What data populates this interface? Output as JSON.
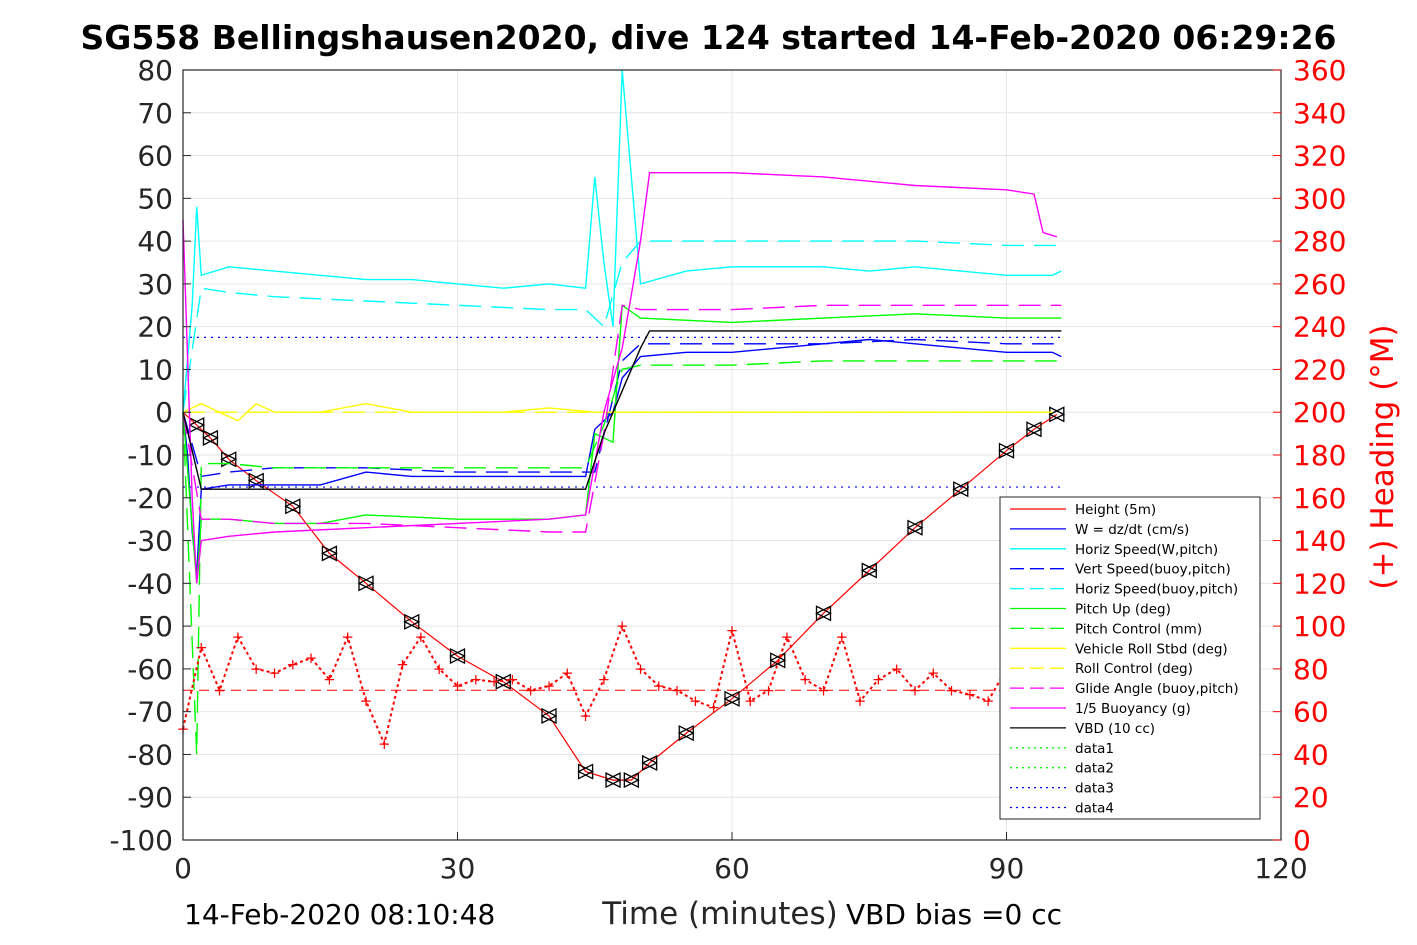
{
  "chart_data": {
    "type": "line",
    "title": "SG558 Bellingshausen2020, dive 124 started 14-Feb-2020 06:29:26",
    "xlabel": "Time (minutes)",
    "ylabel": "",
    "ylabel_right": "(+) Heading (°M)",
    "footer_left": "14-Feb-2020 08:10:48",
    "footer_right": "VBD bias =0 cc",
    "xlim": [
      0,
      120
    ],
    "ylim": [
      -100,
      80
    ],
    "ylim_right": [
      0,
      360
    ],
    "xticks": [
      0,
      30,
      60,
      90,
      120
    ],
    "yticks": [
      -100,
      -90,
      -80,
      -70,
      -60,
      -50,
      -40,
      -30,
      -20,
      -10,
      0,
      10,
      20,
      30,
      40,
      50,
      60,
      70,
      80
    ],
    "yticks_right": [
      0,
      20,
      40,
      60,
      80,
      100,
      120,
      140,
      160,
      180,
      200,
      220,
      240,
      260,
      280,
      300,
      320,
      340,
      360
    ],
    "grid": true,
    "legend_position": "bottom-right",
    "colors": {
      "height": "#ff0000",
      "w": "#0000ff",
      "horiz_w": "#00ffff",
      "pitch": "#00ff00",
      "roll": "#ffff00",
      "glide": "#ff00ff",
      "vbd": "#000000",
      "axis_right": "#ff0000"
    },
    "legend": [
      {
        "label": "Height (5m)",
        "color": "#ff0000",
        "style": "solid"
      },
      {
        "label": "W = dz/dt (cm/s)",
        "color": "#0000ff",
        "style": "solid"
      },
      {
        "label": "Horiz Speed(W,pitch)",
        "color": "#00ffff",
        "style": "solid"
      },
      {
        "label": "Vert Speed(buoy,pitch)",
        "color": "#0000ff",
        "style": "dashed"
      },
      {
        "label": "Horiz Speed(buoy,pitch)",
        "color": "#00ffff",
        "style": "dashed"
      },
      {
        "label": "Pitch Up (deg)",
        "color": "#00ff00",
        "style": "solid"
      },
      {
        "label": "Pitch Control (mm)",
        "color": "#00ff00",
        "style": "dashed"
      },
      {
        "label": "Vehicle Roll Stbd (deg)",
        "color": "#ffff00",
        "style": "solid"
      },
      {
        "label": "Roll Control (deg)",
        "color": "#ffff00",
        "style": "dashed"
      },
      {
        "label": "Glide Angle (buoy,pitch)",
        "color": "#ff00ff",
        "style": "dashed"
      },
      {
        "label": "1/5 Buoyancy (g)",
        "color": "#ff00ff",
        "style": "solid"
      },
      {
        "label": "VBD (10 cc)",
        "color": "#000000",
        "style": "solid"
      },
      {
        "label": "data1",
        "color": "#00ff00",
        "style": "dotted"
      },
      {
        "label": "data2",
        "color": "#00ff00",
        "style": "dotted"
      },
      {
        "label": "data3",
        "color": "#0000ff",
        "style": "dotted"
      },
      {
        "label": "data4",
        "color": "#0000ff",
        "style": "dotted"
      }
    ],
    "series": [
      {
        "name": "Height (5m)",
        "x": [
          0,
          1.5,
          3,
          5,
          8,
          12,
          16,
          20,
          25,
          30,
          35,
          40,
          44,
          47,
          49,
          51,
          55,
          60,
          65,
          70,
          75,
          80,
          85,
          90,
          93,
          95.5
        ],
        "y": [
          0,
          -3,
          -6,
          -11,
          -16,
          -22,
          -33,
          -40,
          -49,
          -57,
          -63,
          -71,
          -84,
          -86,
          -86,
          -82,
          -75,
          -67,
          -58,
          -47,
          -37,
          -27,
          -18,
          -9,
          -4,
          -0.5
        ]
      },
      {
        "name": "W = dz/dt (cm/s)",
        "x": [
          0,
          0.5,
          1,
          1.5,
          2,
          5,
          10,
          15,
          20,
          25,
          30,
          35,
          40,
          44,
          45,
          46,
          47,
          48,
          50,
          55,
          60,
          65,
          70,
          75,
          80,
          85,
          90,
          95,
          96
        ],
        "y": [
          0,
          -10,
          -28,
          -38,
          -18,
          -17,
          -17,
          -17,
          -14,
          -15,
          -15,
          -15,
          -15,
          -15,
          -4,
          -2,
          0,
          8,
          13,
          14,
          14,
          15,
          16,
          17,
          16,
          15,
          14,
          14,
          13
        ]
      },
      {
        "name": "Horiz Speed(W,pitch)",
        "x": [
          0,
          1,
          1.5,
          2,
          5,
          10,
          15,
          20,
          25,
          30,
          35,
          40,
          44,
          45,
          46,
          47,
          48,
          50,
          55,
          60,
          65,
          70,
          75,
          80,
          85,
          90,
          95,
          96
        ],
        "y": [
          0,
          25,
          48,
          32,
          34,
          33,
          32,
          31,
          31,
          30,
          29,
          30,
          29,
          55,
          35,
          20,
          80,
          30,
          33,
          34,
          34,
          34,
          33,
          34,
          33,
          32,
          32,
          33
        ]
      },
      {
        "name": "Vert Speed(buoy,pitch)",
        "x": [
          0,
          2,
          5,
          10,
          20,
          30,
          40,
          45,
          48,
          50,
          60,
          70,
          80,
          90,
          96
        ],
        "y": [
          0,
          -15,
          -14,
          -13,
          -13,
          -14,
          -14,
          -14,
          12,
          16,
          16,
          16,
          17,
          16,
          16
        ]
      },
      {
        "name": "Horiz Speed(buoy,pitch)",
        "x": [
          0,
          2,
          5,
          10,
          20,
          30,
          40,
          44,
          46,
          48,
          50,
          60,
          70,
          80,
          90,
          96
        ],
        "y": [
          0,
          29,
          28,
          27,
          26,
          25,
          24,
          24,
          20,
          35,
          40,
          40,
          40,
          40,
          39,
          39
        ]
      },
      {
        "name": "Pitch Up (deg)",
        "x": [
          0,
          1.5,
          2,
          5,
          10,
          15,
          20,
          30,
          40,
          44,
          45,
          47,
          48,
          50,
          60,
          70,
          80,
          90,
          96
        ],
        "y": [
          0,
          -40,
          -25,
          -25,
          -26,
          -26,
          -24,
          -25,
          -25,
          -24,
          -5,
          -7,
          25,
          22,
          21,
          22,
          23,
          22,
          22
        ]
      },
      {
        "name": "Pitch Control (mm)",
        "x": [
          0,
          1.5,
          2,
          5,
          10,
          20,
          30,
          40,
          44,
          46,
          48,
          50,
          60,
          70,
          80,
          90,
          96
        ],
        "y": [
          0,
          -80,
          -12,
          -12,
          -13,
          -13,
          -13,
          -13,
          -13,
          -3,
          10,
          11,
          11,
          12,
          12,
          12,
          12
        ]
      },
      {
        "name": "Vehicle Roll Stbd (deg)",
        "x": [
          0,
          2,
          4,
          6,
          8,
          10,
          15,
          20,
          25,
          30,
          35,
          40,
          45,
          50,
          55,
          60,
          65,
          70,
          75,
          80,
          85,
          90,
          95
        ],
        "y": [
          0,
          2,
          0,
          -2,
          2,
          0,
          0,
          2,
          0,
          0,
          0,
          1,
          0,
          0,
          0,
          0,
          0,
          0,
          0,
          0,
          0,
          0,
          0
        ]
      },
      {
        "name": "Roll Control (deg)",
        "x": [
          0,
          2,
          5,
          10,
          20,
          30,
          40,
          45,
          50,
          60,
          70,
          80,
          90,
          95
        ],
        "y": [
          0,
          0,
          0,
          0,
          0,
          0,
          0,
          0,
          0,
          0,
          0,
          0,
          0,
          0
        ]
      },
      {
        "name": "Glide Angle (buoy,pitch)",
        "x": [
          0,
          2,
          5,
          10,
          20,
          30,
          40,
          44,
          46,
          48,
          50,
          60,
          70,
          80,
          90,
          96
        ],
        "y": [
          0,
          -25,
          -25,
          -26,
          -26,
          -27,
          -28,
          -28,
          -5,
          25,
          24,
          24,
          25,
          25,
          25,
          25
        ]
      },
      {
        "name": "1/5 Buoyancy (g)",
        "x": [
          0,
          1,
          1.5,
          2,
          5,
          10,
          20,
          30,
          40,
          44,
          46,
          48,
          50,
          51,
          60,
          70,
          80,
          90,
          93,
          94,
          95.5
        ],
        "y": [
          45,
          -20,
          -40,
          -30,
          -29,
          -28,
          -27,
          -26,
          -25,
          -24,
          0,
          15,
          40,
          56,
          56,
          55,
          53,
          52,
          51,
          42,
          41
        ]
      },
      {
        "name": "VBD (10 cc)",
        "x": [
          0,
          2,
          5,
          10,
          20,
          30,
          40,
          44,
          46,
          48,
          50,
          51,
          60,
          70,
          80,
          90,
          96
        ],
        "y": [
          0,
          -18,
          -18,
          -18,
          -18,
          -18,
          -18,
          -18,
          -5,
          5,
          15,
          19,
          19,
          19,
          19,
          19,
          19
        ]
      },
      {
        "name": "(+) Heading (°M)",
        "axis": "right",
        "x": [
          0,
          2,
          4,
          6,
          8,
          10,
          12,
          14,
          16,
          18,
          20,
          22,
          24,
          26,
          28,
          30,
          32,
          34,
          36,
          38,
          40,
          42,
          44,
          46,
          48,
          50,
          52,
          54,
          56,
          58,
          60,
          62,
          64,
          66,
          68,
          70,
          72,
          74,
          76,
          78,
          80,
          82,
          84,
          86,
          88,
          90
        ],
        "y": [
          52,
          90,
          70,
          95,
          80,
          78,
          82,
          85,
          75,
          95,
          65,
          45,
          82,
          95,
          80,
          72,
          75,
          74,
          75,
          70,
          72,
          78,
          58,
          75,
          100,
          80,
          72,
          70,
          65,
          62,
          98,
          65,
          70,
          95,
          75,
          70,
          95,
          65,
          75,
          80,
          70,
          78,
          70,
          68,
          65,
          80
        ]
      }
    ],
    "dotted_lines": [
      {
        "name": "data3",
        "y": 17.5
      },
      {
        "name": "data4",
        "y": -17.5
      }
    ],
    "heading_mean": 70
  }
}
